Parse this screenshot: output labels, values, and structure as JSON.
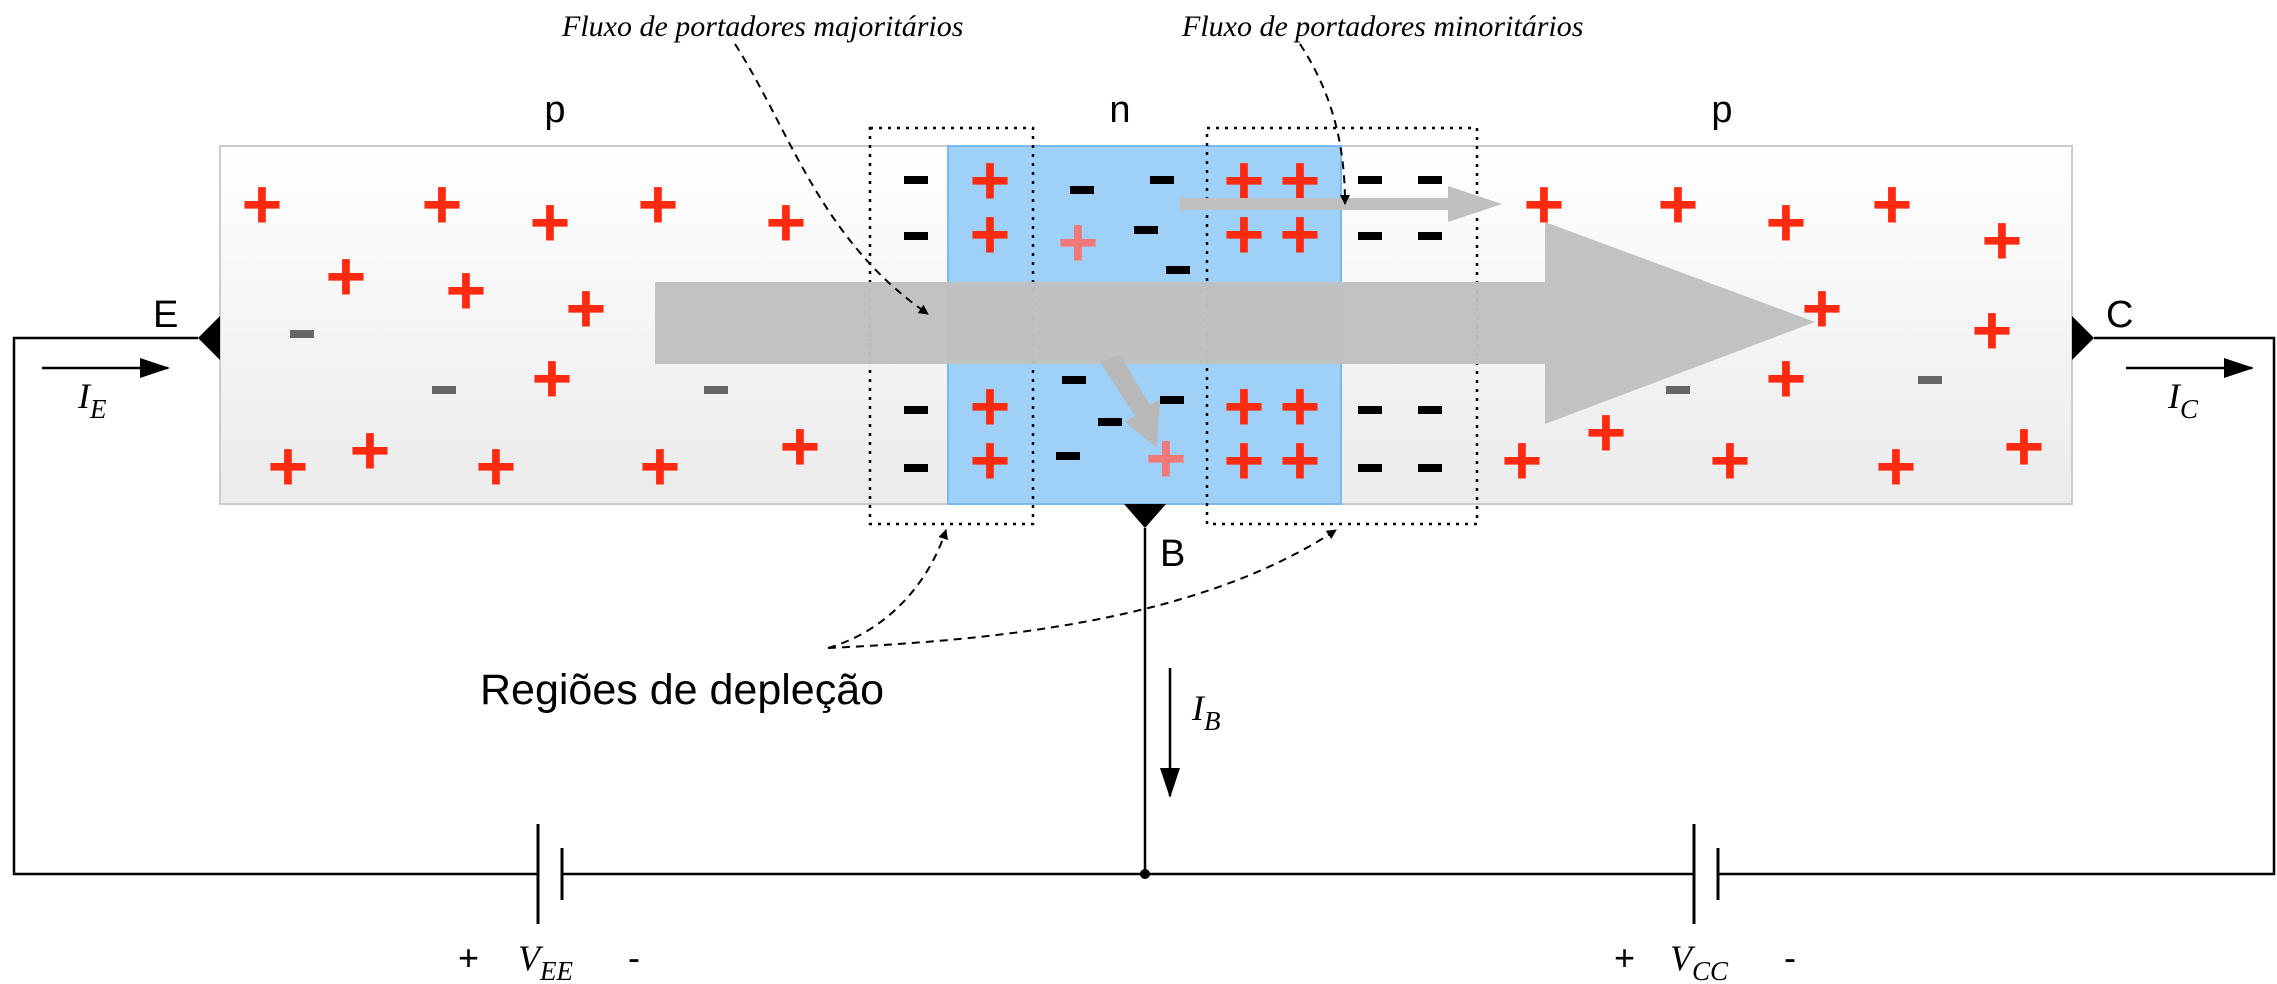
{
  "annotations": {
    "majority_flow": "Fluxo de portadores majoritários",
    "minority_flow": "Fluxo de portadores minoritários",
    "depletion_regions": "Regiões de depleção"
  },
  "regions": {
    "emitter": "p",
    "base": "n",
    "collector": "p"
  },
  "terminals": {
    "emitter": "E",
    "base": "B",
    "collector": "C"
  },
  "currents": {
    "emitter": {
      "symbol": "I",
      "sub": "E"
    },
    "collector": {
      "symbol": "I",
      "sub": "C"
    },
    "base": {
      "symbol": "I",
      "sub": "B"
    }
  },
  "sources": {
    "vee": {
      "plus": "+",
      "symbol": "V",
      "sub": "EE",
      "minus": "-"
    },
    "vcc": {
      "plus": "+",
      "symbol": "V",
      "sub": "CC",
      "minus": "-"
    }
  },
  "charges": {
    "plus": "+"
  },
  "colors": {
    "holes": "#ff2a10",
    "base_region": "#9ed0f8",
    "arrow": "#c0c0c0",
    "semiconductor": "#f0f0f0"
  }
}
